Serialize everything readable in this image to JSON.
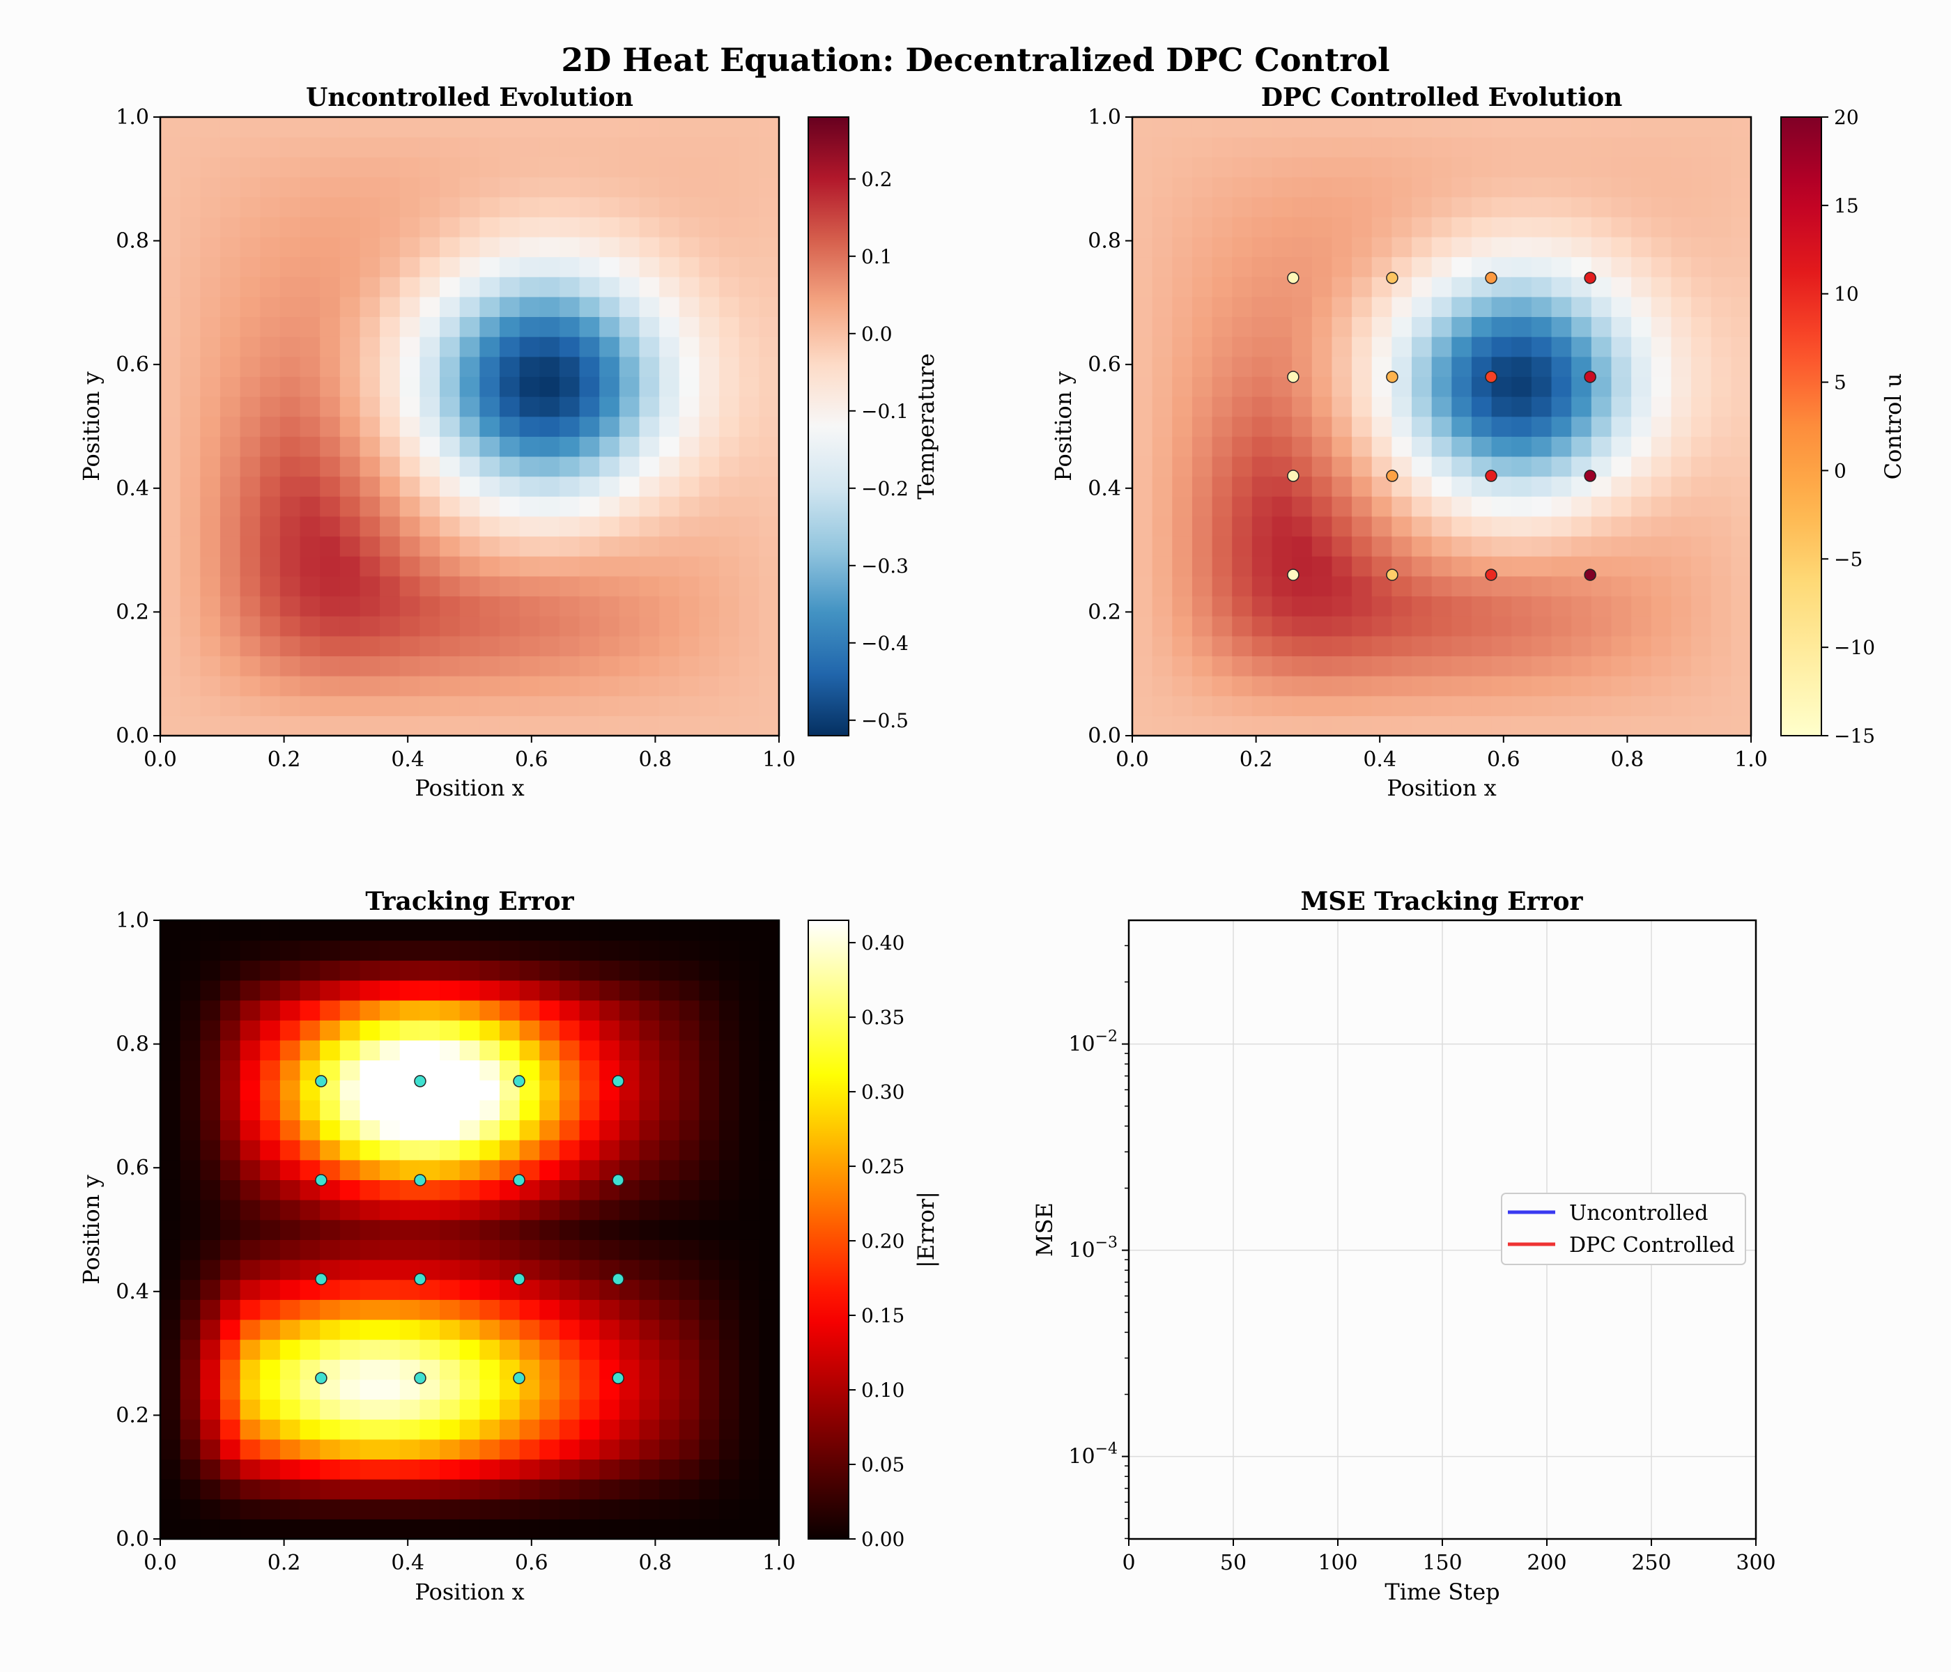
{
  "figure": {
    "title": "2D Heat Equation: Decentralized DPC Control"
  },
  "chart_data": [
    {
      "id": "uncontrolled",
      "type": "heatmap",
      "title": "Uncontrolled Evolution",
      "xlabel": "Position x",
      "ylabel": "Position y",
      "xlim": [
        0.0,
        1.0
      ],
      "ylim": [
        0.0,
        1.0
      ],
      "grid_size": 31,
      "field": "temperature_uncontrolled",
      "xticks": [
        "0.0",
        "0.2",
        "0.4",
        "0.6",
        "0.8",
        "1.0"
      ],
      "yticks": [
        "0.0",
        "0.2",
        "0.4",
        "0.6",
        "0.8",
        "1.0"
      ],
      "colormap": "RdBu_r",
      "colorbar": {
        "label": "Temperature",
        "range": [
          -0.52,
          0.28
        ],
        "ticks": [
          "−0.5",
          "−0.4",
          "−0.3",
          "−0.2",
          "−0.1",
          "0.0",
          "0.1",
          "0.2"
        ],
        "tick_values": [
          -0.5,
          -0.4,
          -0.3,
          -0.2,
          -0.1,
          0.0,
          0.1,
          0.2
        ]
      },
      "field_features": {
        "cold_center": [
          0.62,
          0.57
        ],
        "cold_min": -0.52,
        "warm_center": [
          0.2,
          0.22
        ],
        "warm_max": 0.16
      }
    },
    {
      "id": "controlled",
      "type": "heatmap",
      "title": "DPC Controlled Evolution",
      "xlabel": "Position x",
      "ylabel": "Position y",
      "xlim": [
        0.0,
        1.0
      ],
      "ylim": [
        0.0,
        1.0
      ],
      "grid_size": 31,
      "colormap": "RdBu_r",
      "xticks": [
        "0.0",
        "0.2",
        "0.4",
        "0.6",
        "0.8",
        "1.0"
      ],
      "yticks": [
        "0.0",
        "0.2",
        "0.4",
        "0.6",
        "0.8",
        "1.0"
      ],
      "colorbar": {
        "label": "Control u",
        "range": [
          -15,
          20
        ],
        "colormap": "YlOrRd",
        "ticks": [
          "−15",
          "−10",
          "−5",
          "0",
          "5",
          "10",
          "15",
          "20"
        ],
        "tick_values": [
          -15,
          -10,
          -5,
          0,
          5,
          10,
          15,
          20
        ]
      },
      "actuators": [
        {
          "x": 0.26,
          "y": 0.74,
          "u": -13
        },
        {
          "x": 0.42,
          "y": 0.74,
          "u": -4
        },
        {
          "x": 0.58,
          "y": 0.74,
          "u": 1
        },
        {
          "x": 0.74,
          "y": 0.74,
          "u": 11
        },
        {
          "x": 0.26,
          "y": 0.58,
          "u": -13
        },
        {
          "x": 0.42,
          "y": 0.58,
          "u": -2
        },
        {
          "x": 0.58,
          "y": 0.58,
          "u": 8
        },
        {
          "x": 0.74,
          "y": 0.58,
          "u": 14
        },
        {
          "x": 0.26,
          "y": 0.42,
          "u": -13
        },
        {
          "x": 0.42,
          "y": 0.42,
          "u": 0
        },
        {
          "x": 0.58,
          "y": 0.42,
          "u": 11
        },
        {
          "x": 0.74,
          "y": 0.42,
          "u": 18
        },
        {
          "x": 0.26,
          "y": 0.26,
          "u": -14
        },
        {
          "x": 0.42,
          "y": 0.26,
          "u": -5
        },
        {
          "x": 0.58,
          "y": 0.26,
          "u": 10
        },
        {
          "x": 0.74,
          "y": 0.26,
          "u": 20
        }
      ]
    },
    {
      "id": "error",
      "type": "heatmap",
      "title": "Tracking Error",
      "xlabel": "Position x",
      "ylabel": "Position y",
      "xlim": [
        0.0,
        1.0
      ],
      "ylim": [
        0.0,
        1.0
      ],
      "grid_size": 31,
      "colormap": "hot",
      "xticks": [
        "0.0",
        "0.2",
        "0.4",
        "0.6",
        "0.8",
        "1.0"
      ],
      "yticks": [
        "0.0",
        "0.2",
        "0.4",
        "0.6",
        "0.8",
        "1.0"
      ],
      "colorbar": {
        "label": "|Error|",
        "range": [
          0.0,
          0.415
        ],
        "ticks": [
          "0.00",
          "0.05",
          "0.10",
          "0.15",
          "0.20",
          "0.25",
          "0.30",
          "0.35",
          "0.40"
        ],
        "tick_values": [
          0.0,
          0.05,
          0.1,
          0.15,
          0.2,
          0.25,
          0.3,
          0.35,
          0.4
        ]
      },
      "sensors": [
        {
          "x": 0.26,
          "y": 0.74
        },
        {
          "x": 0.42,
          "y": 0.74
        },
        {
          "x": 0.58,
          "y": 0.74
        },
        {
          "x": 0.74,
          "y": 0.74
        },
        {
          "x": 0.26,
          "y": 0.58
        },
        {
          "x": 0.42,
          "y": 0.58
        },
        {
          "x": 0.58,
          "y": 0.58
        },
        {
          "x": 0.74,
          "y": 0.58
        },
        {
          "x": 0.26,
          "y": 0.42
        },
        {
          "x": 0.42,
          "y": 0.42
        },
        {
          "x": 0.58,
          "y": 0.42
        },
        {
          "x": 0.74,
          "y": 0.42
        },
        {
          "x": 0.26,
          "y": 0.26
        },
        {
          "x": 0.42,
          "y": 0.26
        },
        {
          "x": 0.58,
          "y": 0.26
        },
        {
          "x": 0.74,
          "y": 0.26
        }
      ],
      "sensor_color": "#3fe0d0"
    },
    {
      "id": "mse",
      "type": "line",
      "title": "MSE Tracking Error",
      "xlabel": "Time Step",
      "ylabel": "MSE",
      "xlim": [
        0,
        300
      ],
      "ylim_log10": [
        -4.4,
        -1.4
      ],
      "yscale": "log",
      "xticks": [
        "0",
        "50",
        "100",
        "150",
        "200",
        "250",
        "300"
      ],
      "xtick_values": [
        0,
        50,
        100,
        150,
        200,
        250,
        300
      ],
      "yticks": [
        {
          "base": "10",
          "exp": "−2",
          "log10": -2
        },
        {
          "base": "10",
          "exp": "−3",
          "log10": -3
        },
        {
          "base": "10",
          "exp": "−4",
          "log10": -4
        }
      ],
      "grid": true,
      "legend": "center-right",
      "series": [
        {
          "name": "Uncontrolled",
          "color": "#3a3af0",
          "values": []
        },
        {
          "name": "DPC Controlled",
          "color": "#ee3333",
          "values": []
        }
      ]
    }
  ]
}
